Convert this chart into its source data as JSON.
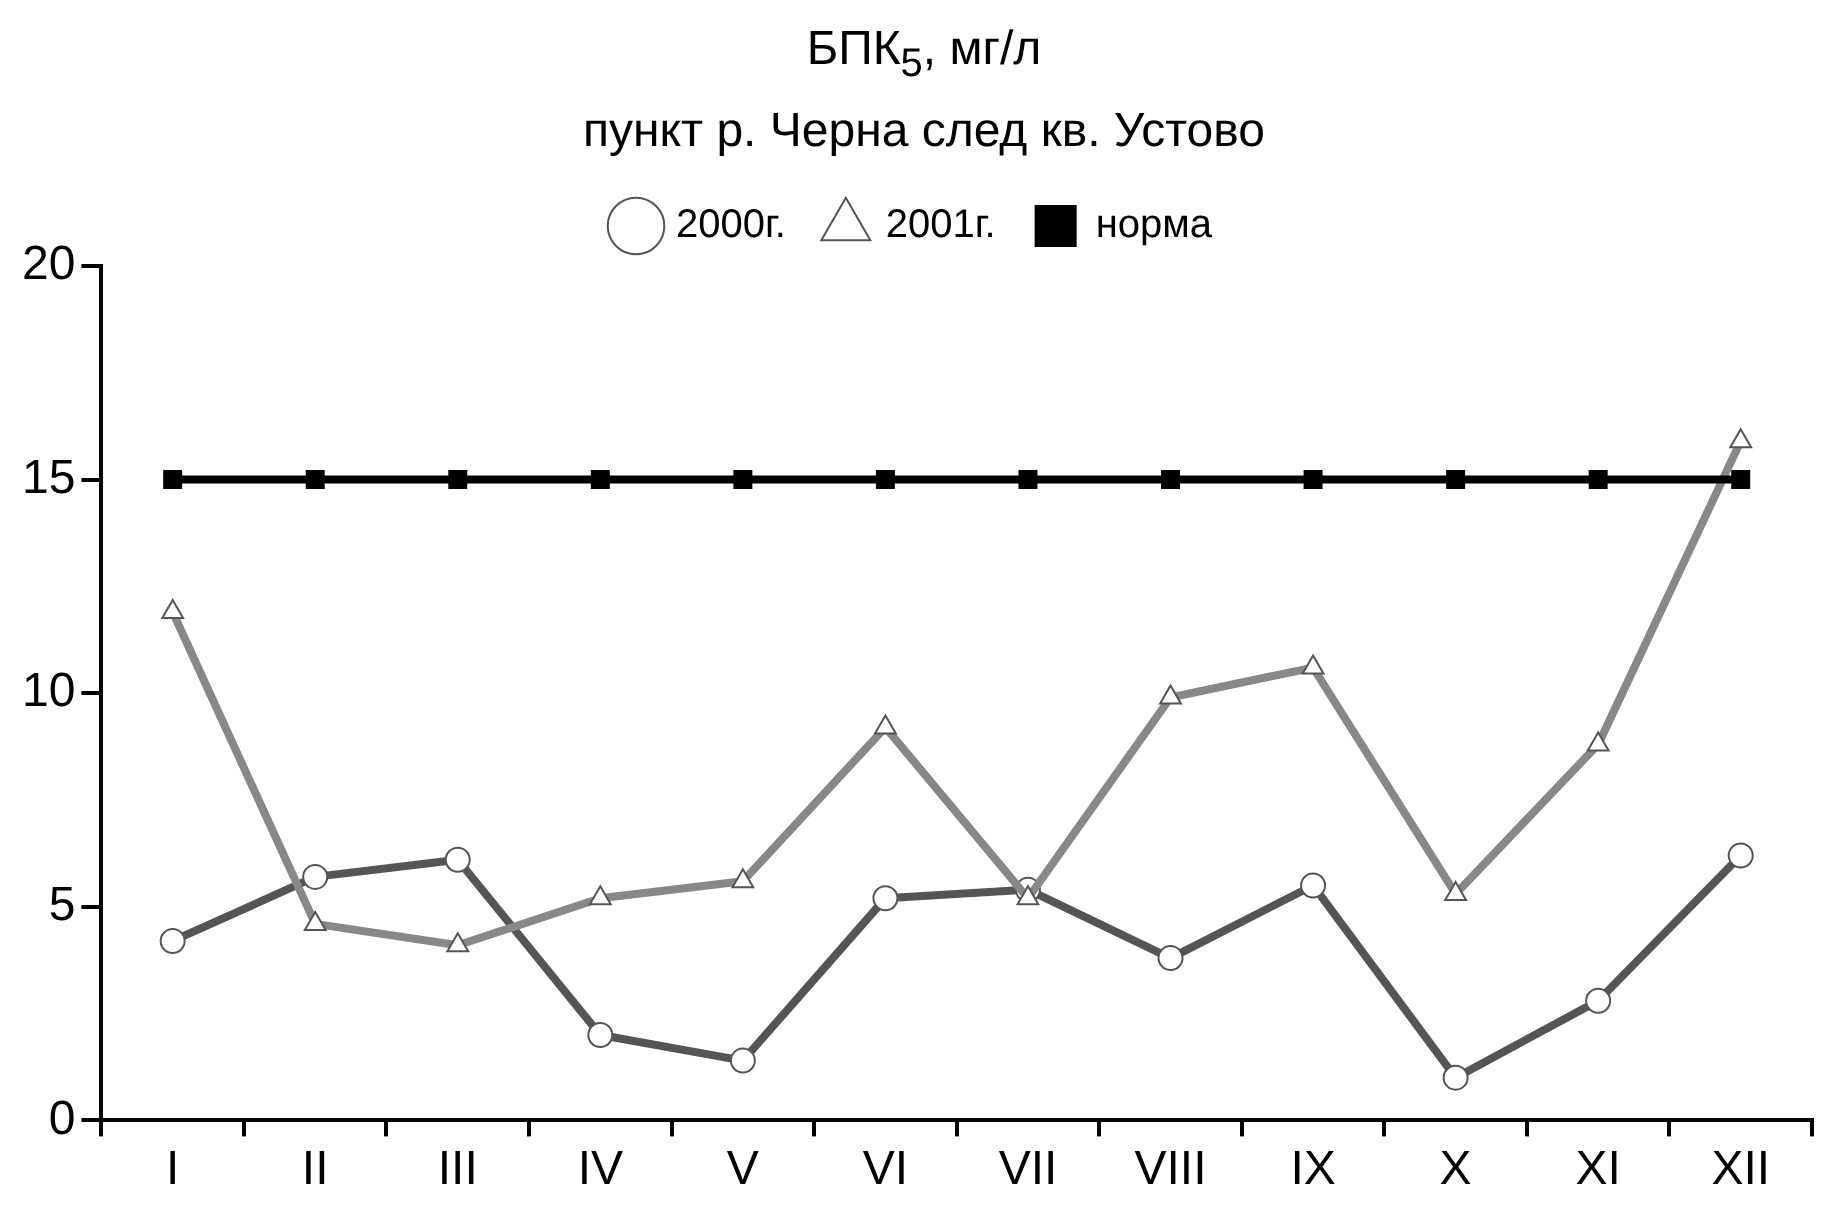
{
  "chart_data": {
    "type": "line",
    "title": "БПК$_{5}$, мг/л",
    "subtitle": "пункт р. Черна след кв. Устово",
    "categories": [
      "I",
      "II",
      "III",
      "IV",
      "V",
      "VI",
      "VII",
      "VIII",
      "IX",
      "X",
      "XI",
      "XII"
    ],
    "series": [
      {
        "name": "2000г.",
        "color": "#555555",
        "marker": "circle",
        "values": [
          4.2,
          5.7,
          6.1,
          2.0,
          1.4,
          5.2,
          5.4,
          3.8,
          5.5,
          1.0,
          2.8,
          6.2
        ]
      },
      {
        "name": "2001г.",
        "color": "#888888",
        "marker": "triangle",
        "values": [
          11.9,
          4.6,
          4.1,
          5.2,
          5.6,
          9.2,
          5.2,
          9.9,
          10.6,
          5.3,
          8.8,
          15.9
        ]
      },
      {
        "name": "норма",
        "color": "#000000",
        "marker": "square",
        "values": [
          15,
          15,
          15,
          15,
          15,
          15,
          15,
          15,
          15,
          15,
          15,
          15
        ]
      }
    ],
    "ylim": [
      0,
      20
    ],
    "yticks": [
      0,
      5,
      10,
      15,
      20
    ],
    "grid": false,
    "legend": "top",
    "line_style": "solid"
  }
}
